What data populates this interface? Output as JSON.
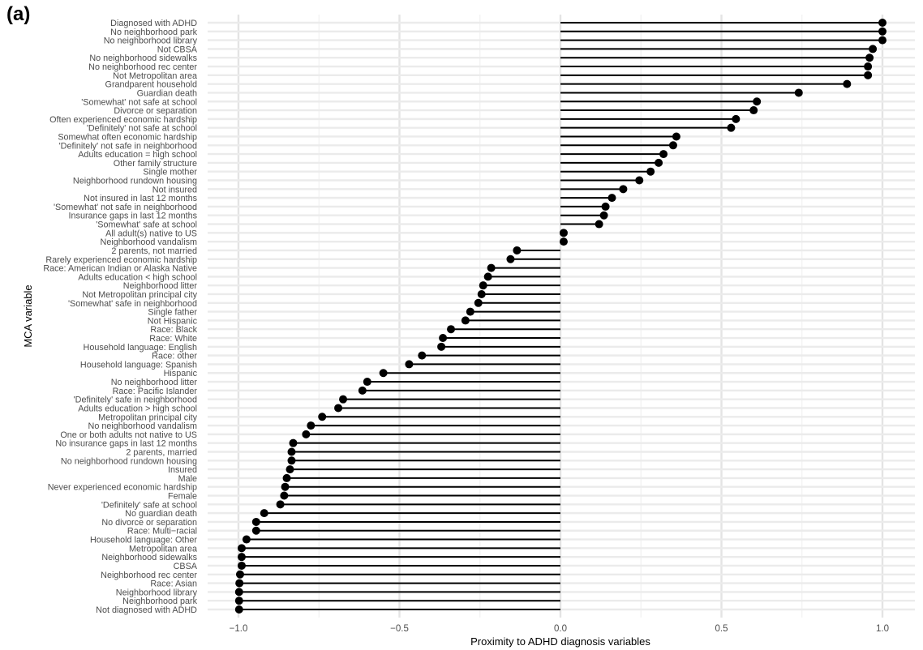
{
  "panel_label": "(a)",
  "chart_data": {
    "type": "lollipop",
    "xlabel": "Proximity to ADHD diagnosis variables",
    "ylabel": "MCA variable",
    "xlim": [
      -1.0,
      1.0
    ],
    "x_ticks": [
      "−1.0",
      "−0.5",
      "0.0",
      "0.5",
      "1.0"
    ],
    "x_tick_values": [
      -1.0,
      -0.5,
      0.0,
      0.5,
      1.0
    ],
    "grid": true,
    "categories": [
      "Diagnosed with ADHD",
      "No neighborhood park",
      "No neighborhood library",
      "Not CBSA",
      "No neighborhood sidewalks",
      "No neighborhood rec center",
      "Not Metropolitan area",
      "Grandparent household",
      "Guardian death",
      "'Somewhat' not safe at school",
      "Divorce or separation",
      "Often experienced economic hardship",
      "'Definitely' not safe at school",
      "Somewhat often economic hardship",
      "'Definitely' not safe in neighborhood",
      "Adults education = high school",
      "Other family structure",
      "Single mother",
      "Neighborhood rundown housing",
      "Not insured",
      "Not insured in last 12 months",
      "'Somewhat' not safe in neighborhood",
      "Insurance gaps in last 12 months",
      "'Somewhat' safe at school",
      "All adult(s) native to US",
      "Neighborhood vandalism",
      "2 parents, not married",
      "Rarely experienced economic hardship",
      "Race: American Indian or Alaska Native",
      "Adults education < high school",
      "Neighborhood litter",
      "Not Metropolitan principal city",
      "'Somewhat' safe in neighborhood",
      "Single father",
      "Not Hispanic",
      "Race: Black",
      "Race: White",
      "Household language: English",
      "Race: other",
      "Household language: Spanish",
      "Hispanic",
      "No neighborhood litter",
      "Race: Pacific Islander",
      "'Definitely' safe in neighborhood",
      "Adults education > high school",
      "Metropolitan principal city",
      "No neighborhood vandalism",
      "One or both adults not native to US",
      "No insurance gaps in last 12 months",
      "2 parents, married",
      "No neighborhood rundown housing",
      "Insured",
      "Male",
      "Never experienced economic hardship",
      "Female",
      "'Definitely' safe at school",
      "No guardian death",
      "No divorce or separation",
      "Race: Multi−racial",
      "Household language: Other",
      "Metropolitan area",
      "Neighborhood sidewalks",
      "CBSA",
      "Neighborhood rec center",
      "Race: Asian",
      "Neighborhood library",
      "Neighborhood park",
      "Not diagnosed with ADHD"
    ],
    "values": [
      1.0,
      1.0,
      1.0,
      0.97,
      0.96,
      0.955,
      0.955,
      0.89,
      0.74,
      0.61,
      0.6,
      0.545,
      0.53,
      0.36,
      0.35,
      0.32,
      0.305,
      0.28,
      0.245,
      0.195,
      0.16,
      0.14,
      0.135,
      0.12,
      0.01,
      0.01,
      -0.135,
      -0.155,
      -0.215,
      -0.225,
      -0.24,
      -0.245,
      -0.255,
      -0.28,
      -0.295,
      -0.34,
      -0.365,
      -0.37,
      -0.43,
      -0.47,
      -0.55,
      -0.6,
      -0.615,
      -0.675,
      -0.69,
      -0.74,
      -0.775,
      -0.79,
      -0.83,
      -0.835,
      -0.835,
      -0.84,
      -0.85,
      -0.855,
      -0.858,
      -0.87,
      -0.92,
      -0.945,
      -0.945,
      -0.975,
      -0.99,
      -0.99,
      -0.99,
      -0.995,
      -0.997,
      -0.998,
      -0.998,
      -0.998
    ]
  }
}
